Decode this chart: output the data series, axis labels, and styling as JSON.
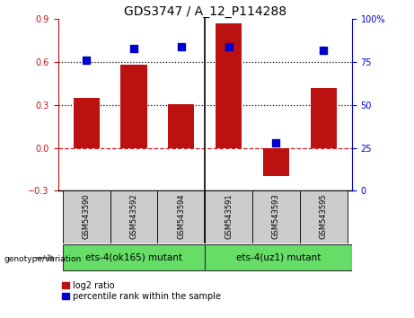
{
  "title": "GDS3747 / A_12_P114288",
  "samples": [
    "GSM543590",
    "GSM543592",
    "GSM543594",
    "GSM543591",
    "GSM543593",
    "GSM543595"
  ],
  "log2_ratio": [
    0.35,
    0.58,
    0.305,
    0.87,
    -0.2,
    0.42
  ],
  "percentile_rank": [
    76,
    83,
    84,
    84,
    28,
    82
  ],
  "bar_color": "#bb1111",
  "dot_color": "#0000cc",
  "ylim_left": [
    -0.3,
    0.9
  ],
  "ylim_right": [
    0,
    100
  ],
  "yticks_left": [
    -0.3,
    0.0,
    0.3,
    0.6,
    0.9
  ],
  "yticks_right": [
    0,
    25,
    50,
    75,
    100
  ],
  "hline_dotted": [
    0.3,
    0.6
  ],
  "hline_dash_color": "#cc2222",
  "group1_label": "ets-4(ok165) mutant",
  "group2_label": "ets-4(uz1) mutant",
  "group_bg_color": "#66dd66",
  "sample_box_color": "#cccccc",
  "genotype_label": "genotype/variation",
  "legend_bar_label": "log2 ratio",
  "legend_dot_label": "percentile rank within the sample",
  "title_fontsize": 10,
  "tick_fontsize": 7,
  "bar_width": 0.55
}
